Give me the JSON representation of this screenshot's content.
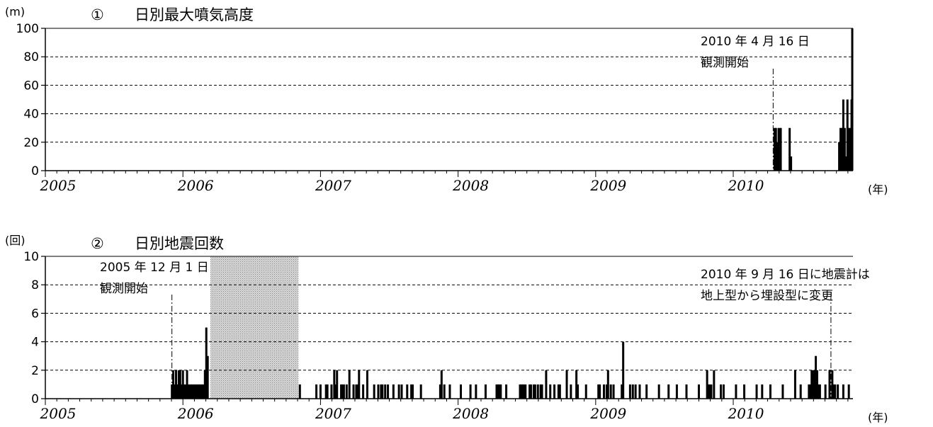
{
  "chart_data": [
    {
      "type": "bar",
      "number": "①",
      "title": "日別最大噴気高度",
      "y_unit": "(m)",
      "x_unit": "(年)",
      "ylim": [
        0,
        100
      ],
      "yticks": [
        "0",
        "20",
        "40",
        "60",
        "80",
        "100"
      ],
      "xlim": [
        2005.0,
        2010.87
      ],
      "xtick_labels": [
        "2005",
        "2006",
        "2007",
        "2008",
        "2009",
        "2010"
      ],
      "grid": "dashed horizontal",
      "annotations": [
        {
          "lines": [
            "2010 年 4 月 16 日",
            "観測開始"
          ],
          "x": 2010.29
        }
      ],
      "shaded_periods": [],
      "series": [
        {
          "x": [
            2010.3,
            2010.31,
            2010.32,
            2010.33,
            2010.345,
            2010.41,
            2010.42,
            2010.77,
            2010.78,
            2010.79,
            2010.8,
            2010.81,
            2010.82,
            2010.83,
            2010.84,
            2010.85,
            2010.86,
            2010.865
          ],
          "values": [
            30,
            30,
            20,
            30,
            30,
            30,
            10,
            20,
            30,
            30,
            50,
            30,
            10,
            50,
            30,
            30,
            50,
            100
          ]
        }
      ]
    },
    {
      "type": "bar",
      "number": "②",
      "title": "日別地震回数",
      "y_unit": "(回)",
      "x_unit": "(年)",
      "ylim": [
        0,
        10
      ],
      "yticks": [
        "0",
        "2",
        "4",
        "6",
        "8",
        "10"
      ],
      "xlim": [
        2005.0,
        2010.87
      ],
      "xtick_labels": [
        "2005",
        "2006",
        "2007",
        "2008",
        "2009",
        "2010"
      ],
      "grid": "dashed horizontal",
      "annotations": [
        {
          "lines": [
            "2005 年 12 月 1 日",
            "観測開始"
          ],
          "x": 2005.92
        },
        {
          "lines": [
            "2010 年 9 月 16 日に地震計は",
            "地上型から埋設型に変更"
          ],
          "x": 2010.71
        }
      ],
      "shaded_periods": [
        [
          2006.2,
          2006.84
        ]
      ],
      "series": [
        {
          "x": [
            2005.92,
            2005.93,
            2005.94,
            2005.95,
            2005.96,
            2005.97,
            2005.98,
            2005.99,
            2006.0,
            2006.01,
            2006.02,
            2006.03,
            2006.04,
            2006.05,
            2006.06,
            2006.07,
            2006.08,
            2006.09,
            2006.1,
            2006.11,
            2006.12,
            2006.13,
            2006.14,
            2006.15,
            2006.16,
            2006.17,
            2006.18,
            2006.85,
            2006.97,
            2007.0,
            2007.04,
            2007.05,
            2007.08,
            2007.1,
            2007.11,
            2007.12,
            2007.15,
            2007.16,
            2007.17,
            2007.19,
            2007.21,
            2007.24,
            2007.26,
            2007.27,
            2007.28,
            2007.31,
            2007.34,
            2007.39,
            2007.42,
            2007.44,
            2007.45,
            2007.47,
            2007.49,
            2007.53,
            2007.57,
            2007.59,
            2007.63,
            2007.66,
            2007.67,
            2007.73,
            2007.87,
            2007.88,
            2007.9,
            2007.94,
            2008.02,
            2008.09,
            2008.13,
            2008.2,
            2008.28,
            2008.29,
            2008.3,
            2008.31,
            2008.35,
            2008.45,
            2008.46,
            2008.47,
            2008.48,
            2008.49,
            2008.52,
            2008.53,
            2008.55,
            2008.56,
            2008.58,
            2008.6,
            2008.61,
            2008.64,
            2008.67,
            2008.7,
            2008.73,
            2008.74,
            2008.79,
            2008.82,
            2008.86,
            2008.87,
            2008.93,
            2009.02,
            2009.03,
            2009.06,
            2009.08,
            2009.09,
            2009.11,
            2009.13,
            2009.19,
            2009.2,
            2009.25,
            2009.27,
            2009.29,
            2009.32,
            2009.37,
            2009.46,
            2009.53,
            2009.59,
            2009.66,
            2009.75,
            2009.81,
            2009.82,
            2009.83,
            2009.84,
            2009.86,
            2009.91,
            2009.93,
            2010.02,
            2010.08,
            2010.17,
            2010.21,
            2010.27,
            2010.36,
            2010.45,
            2010.49,
            2010.55,
            2010.56,
            2010.57,
            2010.58,
            2010.59,
            2010.6,
            2010.61,
            2010.62,
            2010.63,
            2010.67,
            2010.7,
            2010.72,
            2010.73,
            2010.74,
            2010.76,
            2010.8,
            2010.84
          ],
          "values": [
            1,
            2,
            1,
            2,
            1,
            2,
            2,
            1,
            2,
            1,
            1,
            2,
            1,
            1,
            1,
            1,
            1,
            1,
            1,
            1,
            1,
            1,
            1,
            1,
            2,
            5,
            3,
            1,
            1,
            1,
            1,
            1,
            1,
            2,
            1,
            2,
            1,
            1,
            1,
            1,
            2,
            1,
            1,
            1,
            2,
            1,
            2,
            1,
            1,
            1,
            1,
            1,
            1,
            1,
            1,
            1,
            1,
            1,
            1,
            1,
            1,
            2,
            1,
            1,
            1,
            1,
            1,
            1,
            1,
            1,
            1,
            1,
            1,
            1,
            1,
            1,
            1,
            1,
            1,
            1,
            1,
            1,
            1,
            1,
            1,
            2,
            1,
            1,
            1,
            1,
            2,
            1,
            2,
            1,
            1,
            1,
            1,
            1,
            1,
            2,
            1,
            1,
            1,
            4,
            1,
            1,
            1,
            1,
            1,
            1,
            1,
            1,
            1,
            1,
            2,
            1,
            1,
            1,
            2,
            1,
            1,
            1,
            1,
            1,
            1,
            1,
            1,
            2,
            1,
            1,
            1,
            2,
            2,
            2,
            3,
            2,
            1,
            1,
            1,
            2,
            2,
            1,
            1,
            1,
            1,
            1
          ]
        }
      ]
    }
  ]
}
